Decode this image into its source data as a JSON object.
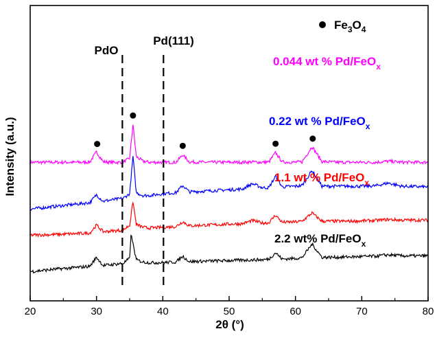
{
  "chart_data": {
    "type": "line",
    "title": "",
    "xlabel": "2θ (°)",
    "ylabel": "Intensity (a.u.)",
    "xlim": [
      20,
      80
    ],
    "xticks": [
      20,
      30,
      40,
      50,
      60,
      70,
      80
    ],
    "yticks_shown": false,
    "grid": false,
    "series": [
      {
        "name": "0.044 wt % Pd/FeO",
        "subscript": "x",
        "color": "#ff00ff",
        "offset": 3.05,
        "x": [
          20,
          22,
          24,
          26,
          28,
          29,
          30,
          31,
          32,
          34,
          35,
          35.5,
          36,
          37,
          38,
          40,
          42,
          43,
          44,
          46,
          48,
          50,
          52,
          53.5,
          55,
          56,
          57,
          58,
          60,
          61,
          62.5,
          64,
          66,
          68,
          70,
          72,
          74,
          76,
          78,
          80
        ],
        "y": [
          0.06,
          0.06,
          0.06,
          0.06,
          0.06,
          0.07,
          0.35,
          0.08,
          0.06,
          0.06,
          0.17,
          1.12,
          0.22,
          0.09,
          0.06,
          0.06,
          0.06,
          0.27,
          0.07,
          0.06,
          0.06,
          0.06,
          0.06,
          0.07,
          0.06,
          0.07,
          0.33,
          0.07,
          0.06,
          0.07,
          0.5,
          0.08,
          0.06,
          0.06,
          0.06,
          0.06,
          0.09,
          0.06,
          0.06,
          0.06
        ]
      },
      {
        "name": "0.22 wt % Pd/FeO",
        "subscript": "x",
        "color": "#0000ff",
        "offset": 1.78,
        "x": [
          20,
          24,
          28,
          29,
          30,
          31,
          32,
          34,
          35,
          35.5,
          36,
          37,
          38,
          40,
          42,
          43,
          44,
          46,
          48,
          50,
          52,
          53.5,
          55,
          56,
          57,
          58,
          60,
          61,
          62.5,
          64,
          66,
          68,
          70,
          72,
          74,
          76,
          78,
          80
        ],
        "y": [
          0.02,
          0.1,
          0.18,
          0.2,
          0.42,
          0.24,
          0.27,
          0.32,
          0.45,
          1.5,
          0.48,
          0.4,
          0.4,
          0.45,
          0.48,
          0.68,
          0.5,
          0.52,
          0.54,
          0.56,
          0.58,
          0.73,
          0.62,
          0.62,
          0.94,
          0.64,
          0.66,
          0.68,
          1.1,
          0.66,
          0.66,
          0.66,
          0.66,
          0.67,
          0.75,
          0.66,
          0.65,
          0.64
        ]
      },
      {
        "name": "1.1 wt % Pd/FeO",
        "subscript": "x",
        "color": "#ff0000",
        "offset": 1.03,
        "x": [
          20,
          24,
          28,
          29,
          30,
          31,
          32,
          34,
          35,
          35.5,
          36,
          37,
          38,
          40,
          42,
          43,
          44,
          46,
          48,
          50,
          52,
          53.5,
          55,
          56,
          57,
          58,
          60,
          61,
          62.5,
          64,
          66,
          68,
          70,
          72,
          74,
          76,
          78,
          80
        ],
        "y": [
          0.04,
          0.06,
          0.09,
          0.1,
          0.32,
          0.14,
          0.15,
          0.18,
          0.32,
          0.98,
          0.34,
          0.26,
          0.24,
          0.26,
          0.28,
          0.42,
          0.3,
          0.32,
          0.33,
          0.35,
          0.36,
          0.45,
          0.38,
          0.39,
          0.6,
          0.4,
          0.41,
          0.43,
          0.66,
          0.43,
          0.43,
          0.43,
          0.44,
          0.45,
          0.48,
          0.46,
          0.46,
          0.46
        ]
      },
      {
        "name": "2.2 wt% Pd/FeO",
        "subscript": "x",
        "color": "#000000",
        "offset": 0.0,
        "x": [
          20,
          24,
          28,
          29,
          30,
          31,
          32,
          34,
          35,
          35.2,
          36,
          37,
          38,
          40,
          42,
          43,
          44,
          46,
          48,
          50,
          52,
          54,
          55,
          56,
          57,
          58,
          60,
          61,
          62.5,
          64,
          66,
          68,
          70,
          72,
          74,
          76,
          78,
          80
        ],
        "y": [
          0.05,
          0.12,
          0.18,
          0.2,
          0.45,
          0.22,
          0.24,
          0.28,
          0.42,
          1.1,
          0.38,
          0.32,
          0.3,
          0.3,
          0.32,
          0.48,
          0.33,
          0.34,
          0.35,
          0.36,
          0.37,
          0.38,
          0.38,
          0.4,
          0.58,
          0.4,
          0.42,
          0.44,
          0.82,
          0.45,
          0.45,
          0.46,
          0.47,
          0.48,
          0.52,
          0.49,
          0.49,
          0.49
        ]
      }
    ],
    "reference_lines": [
      {
        "label": "PdO",
        "x": 33.9,
        "style": "dashed"
      },
      {
        "label": "Pd(111)",
        "x": 40.1,
        "style": "dashed"
      }
    ],
    "markers": {
      "legend_label": "Fe",
      "legend_sub1": "3",
      "legend_mid": "O",
      "legend_sub2": "4",
      "symbol": "filled-circle",
      "series_index": 0,
      "positions": [
        30.1,
        35.5,
        43.0,
        57.0,
        62.6
      ]
    }
  }
}
